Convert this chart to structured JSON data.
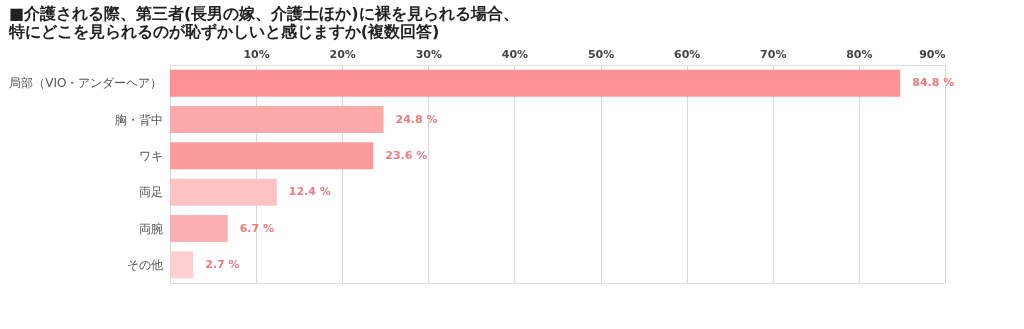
{
  "chart_data": {
    "type": "bar",
    "orientation": "horizontal",
    "title": [
      "■介護される際、第三者(長男の嫁、介護士ほか)に裸を見られる場合、",
      "特にどこを見られるのが恥ずかしいと感じますか(複数回答)"
    ],
    "categories": [
      "局部（VIO・アンダーヘア）",
      "胸・背中",
      "ワキ",
      "両足",
      "両腕",
      "その他"
    ],
    "values": [
      84.8,
      24.8,
      23.6,
      12.4,
      6.7,
      2.7
    ],
    "colors": [
      "#fb9396",
      "#fbaaab",
      "#f99a9c",
      "#fbc3c4",
      "#fbb0b1",
      "#fccfd0"
    ],
    "value_labels": [
      "84.8 %",
      "24.8 %",
      "23.6 %",
      "12.4 %",
      "6.7 %",
      "2.7 %"
    ],
    "xlim": [
      0,
      90
    ],
    "xticks": [
      {
        "value": 0,
        "label": null
      },
      {
        "value": 10,
        "label": "10%"
      },
      {
        "value": 20,
        "label": "20%"
      },
      {
        "value": 30,
        "label": "30%"
      },
      {
        "value": 40,
        "label": "40%"
      },
      {
        "value": 50,
        "label": "50%"
      },
      {
        "value": 60,
        "label": "60%"
      },
      {
        "value": 70,
        "label": "70%"
      },
      {
        "value": 80,
        "label": "80%"
      },
      {
        "value": 90,
        "label": "90%"
      }
    ],
    "grid": "x"
  }
}
